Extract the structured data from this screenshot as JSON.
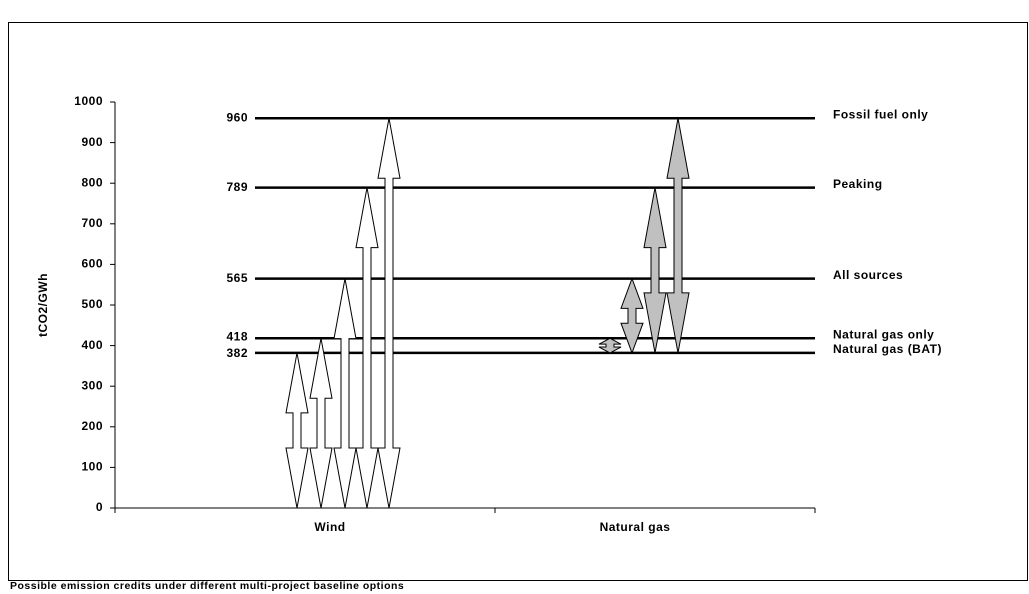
{
  "chart_data": {
    "type": "baseline-arrows",
    "title": "Possible emission credits under different multi-project baseline options",
    "y_label": "tCO2/GWh",
    "ylim": [
      0,
      1000
    ],
    "yticks": [
      0,
      100,
      200,
      300,
      400,
      500,
      600,
      700,
      800,
      900,
      1000
    ],
    "baselines": [
      {
        "name": "Fossil fuel only",
        "value": 960
      },
      {
        "name": "Peaking",
        "value": 789
      },
      {
        "name": "All sources",
        "value": 565
      },
      {
        "name": "Natural gas only",
        "value": 418
      },
      {
        "name": "Natural gas (BAT)",
        "value": 382
      }
    ],
    "series": [
      {
        "name": "Wind",
        "start": 0,
        "color": "#ffffff"
      },
      {
        "name": "Natural gas",
        "start": 382,
        "color": "#c0c0c0"
      }
    ]
  }
}
